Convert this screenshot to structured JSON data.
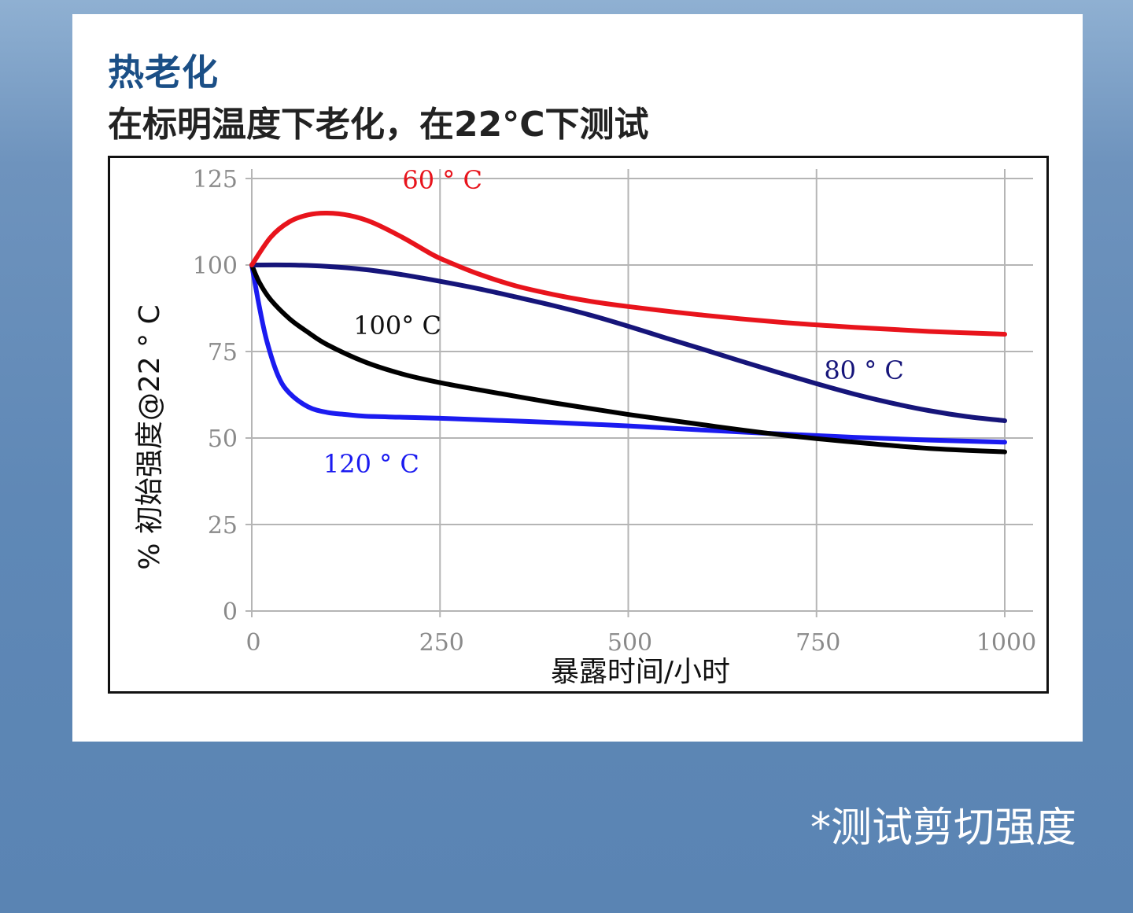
{
  "header": {
    "title": "热老化",
    "subtitle": "在标明温度下老化，在22°C下测试"
  },
  "footnote": "*测试剪切强度",
  "colors": {
    "title": "#1b4f86",
    "c60": "#e8141c",
    "c80": "#16157a",
    "c100": "#000000",
    "c120": "#1b1bf0",
    "grid": "#b5b5b5"
  },
  "chart_data": {
    "type": "line",
    "xlabel": "暴露时间/小时",
    "ylabel": "% 初始强度@22 ° C",
    "xlim": [
      0,
      1000
    ],
    "ylim": [
      0,
      125
    ],
    "xticks": [
      "0",
      "250",
      "500",
      "750",
      "1000"
    ],
    "yticks": [
      "0",
      "25",
      "50",
      "75",
      "100",
      "125"
    ],
    "grid": true,
    "series": [
      {
        "name": "60 ° C",
        "color": "#e8141c",
        "x": [
          0,
          25,
          50,
          75,
          100,
          130,
          160,
          200,
          240,
          260,
          300,
          350,
          400,
          450,
          500,
          600,
          700,
          800,
          900,
          1000
        ],
        "y": [
          100,
          108,
          112.5,
          114.5,
          115,
          114.3,
          112.3,
          108,
          103,
          101,
          97.5,
          94,
          91.5,
          89.5,
          88,
          85.5,
          83.5,
          82,
          80.8,
          80
        ]
      },
      {
        "name": "80 ° C",
        "color": "#16157a",
        "x": [
          0,
          50,
          100,
          150,
          200,
          250,
          300,
          350,
          400,
          450,
          500,
          550,
          600,
          650,
          700,
          750,
          800,
          850,
          900,
          950,
          1000
        ],
        "y": [
          100,
          100,
          99.6,
          98.7,
          97.2,
          95.3,
          93.2,
          90.8,
          88.3,
          85.5,
          82.3,
          78.9,
          75.6,
          72.2,
          68.9,
          65.7,
          62.7,
          60.1,
          57.9,
          56.2,
          55
        ]
      },
      {
        "name": "100° C",
        "color": "#000000",
        "x": [
          0,
          10,
          25,
          50,
          75,
          100,
          150,
          200,
          250,
          300,
          400,
          500,
          600,
          700,
          800,
          900,
          1000
        ],
        "y": [
          100,
          95,
          90,
          84.5,
          80.5,
          77,
          72,
          68.5,
          66,
          64,
          60.2,
          56.8,
          53.8,
          51,
          48.8,
          47,
          46
        ]
      },
      {
        "name": "120 ° C",
        "color": "#1b1bf0",
        "x": [
          0,
          10,
          20,
          35,
          50,
          75,
          100,
          125,
          150,
          200,
          250,
          300,
          400,
          500,
          600,
          700,
          800,
          900,
          1000
        ],
        "y": [
          100,
          88,
          78,
          68,
          63,
          59,
          57.4,
          56.8,
          56.3,
          56,
          55.7,
          55.3,
          54.5,
          53.5,
          52.3,
          51.2,
          50.2,
          49.4,
          48.8
        ]
      }
    ],
    "annotations": [
      {
        "text": "60 ° C",
        "x": 200,
        "y": 122,
        "color": "#e8141c"
      },
      {
        "text": "100° C",
        "x": 135,
        "y": 80,
        "color": "#111111"
      },
      {
        "text": "80 ° C",
        "x": 760,
        "y": 67,
        "color": "#16157a"
      },
      {
        "text": "120 ° C",
        "x": 95,
        "y": 40,
        "color": "#1b1bf0"
      }
    ]
  }
}
